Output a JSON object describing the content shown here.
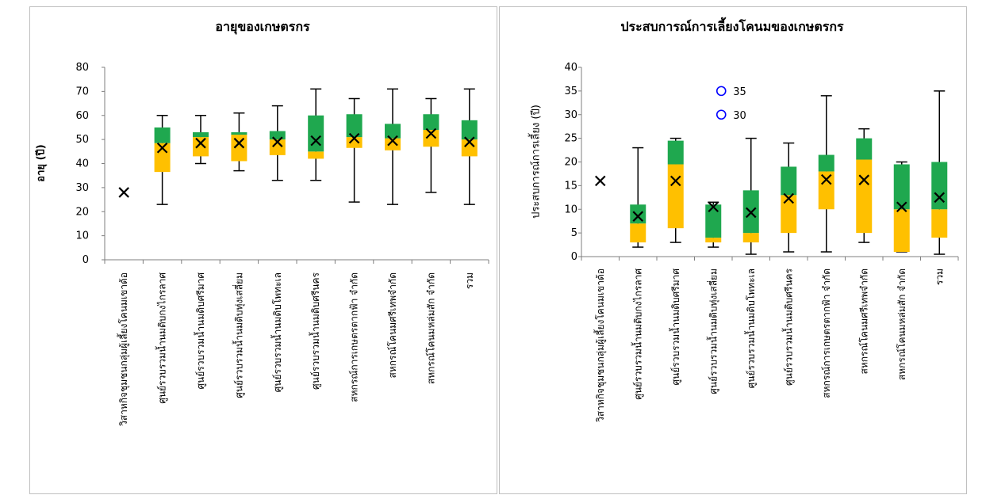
{
  "colors": {
    "upper_box": "#1fa84f",
    "lower_box": "#ffc000",
    "whisker": "#000000",
    "mean_marker": "#000000",
    "outlier": "#0000ff",
    "axis": "#7f7f7f",
    "border": "#bfbfbf"
  },
  "chart_data": [
    {
      "type": "box",
      "title": "อายุของเกษตรกร",
      "ylabel": "อายุ (ปี)",
      "ylim": [
        0,
        80
      ],
      "yticks": [
        0,
        10,
        20,
        30,
        40,
        50,
        60,
        70,
        80
      ],
      "categories": [
        "วิสาหกิจชุมชนกลุ่มผู้เลี้ยงโคนมเขาด้อ",
        "ศูนย์รวบรวมน้ำนมดิบกงไกรลาศ",
        "ศูนย์รวบรวมน้ำนมดิบศรีมาศ",
        "ศูนย์รวบรวมน้ำนมดิบทุ่งเสลี่ยม",
        "ศูนย์รวบรวมน้ำนมดิบโพทะเล",
        "ศูนย์รวบรวมน้ำนมดิบศรีนคร",
        "สหกรณ์การเกษตรตากฟ้า จำกัด",
        "สหกรณ์โคนมศรีเทพจำกัด",
        "สหกรณ์โคนมหล่มสัก จำกัด",
        "รวม"
      ],
      "boxes": [
        {
          "min": 28,
          "q1": 28,
          "median": 28,
          "q3": 28,
          "max": 28,
          "mean": 28
        },
        {
          "min": 23,
          "q1": 36.5,
          "median": 48.5,
          "q3": 55,
          "max": 60,
          "mean": 46.5
        },
        {
          "min": 40,
          "q1": 43,
          "median": 51,
          "q3": 53,
          "max": 60,
          "mean": 48.5
        },
        {
          "min": 37,
          "q1": 41,
          "median": 52,
          "q3": 53,
          "max": 61,
          "mean": 48.5
        },
        {
          "min": 33,
          "q1": 43.5,
          "median": 50,
          "q3": 53.5,
          "max": 64,
          "mean": 49
        },
        {
          "min": 33,
          "q1": 42,
          "median": 45,
          "q3": 60,
          "max": 71,
          "mean": 49.5
        },
        {
          "min": 24,
          "q1": 46.5,
          "median": 51,
          "q3": 60.5,
          "max": 67,
          "mean": 50.5
        },
        {
          "min": 23,
          "q1": 45.5,
          "median": 50.5,
          "q3": 56.5,
          "max": 71,
          "mean": 49.5
        },
        {
          "min": 28,
          "q1": 47,
          "median": 54,
          "q3": 60.5,
          "max": 67,
          "mean": 52.5
        },
        {
          "min": 23,
          "q1": 43,
          "median": 50,
          "q3": 58,
          "max": 71,
          "mean": 49
        }
      ],
      "outliers": []
    },
    {
      "type": "box",
      "title": "ประสบการณ์การเลี้ยงโคนมของเกษตรกร",
      "ylabel": "ประสบการณ์การเลี้ยง (ปี)",
      "ylim": [
        0,
        40
      ],
      "yticks": [
        0,
        5,
        10,
        15,
        20,
        25,
        30,
        35,
        40
      ],
      "categories": [
        "วิสาหกิจชุมชนกลุ่มผู้เลี้ยงโคนมเขาด้อ",
        "ศูนย์รวบรวมน้ำนมดิบกงไกรลาศ",
        "ศูนย์รวบรวมน้ำนมดิบศรีมาศ",
        "ศูนย์รวบรวมน้ำนมดิบทุ่งเสลี่ยม",
        "ศูนย์รวบรวมน้ำนมดิบโพทะเล",
        "ศูนย์รวบรวมน้ำนมดิบศรีนคร",
        "สหกรณ์การเกษตรตากฟ้า จำกัด",
        "สหกรณ์โคนมศรีเทพจำกัด",
        "สหกรณ์โคนมหล่มสัก จำกัด",
        "รวม"
      ],
      "boxes": [
        {
          "min": 16,
          "q1": 16,
          "median": 16,
          "q3": 16,
          "max": 16,
          "mean": 16
        },
        {
          "min": 2,
          "q1": 3,
          "median": 7,
          "q3": 11,
          "max": 23,
          "mean": 8.5
        },
        {
          "min": 3,
          "q1": 6,
          "median": 19.5,
          "q3": 24.5,
          "max": 25,
          "mean": 16
        },
        {
          "min": 2,
          "q1": 3,
          "median": 4,
          "q3": 11,
          "max": 11.5,
          "mean": 10.5
        },
        {
          "min": 0.5,
          "q1": 3,
          "median": 5,
          "q3": 14,
          "max": 25,
          "mean": 9.3
        },
        {
          "min": 1,
          "q1": 5,
          "median": 13,
          "q3": 19,
          "max": 24,
          "mean": 12.3
        },
        {
          "min": 1,
          "q1": 10,
          "median": 18,
          "q3": 21.5,
          "max": 34,
          "mean": 16.3
        },
        {
          "min": 3,
          "q1": 5,
          "median": 20.5,
          "q3": 25,
          "max": 27,
          "mean": 16.2
        },
        {
          "min": 1,
          "q1": 1,
          "median": 10,
          "q3": 19.5,
          "max": 20,
          "mean": 10.5
        },
        {
          "min": 0.5,
          "q1": 4,
          "median": 10,
          "q3": 20,
          "max": 35,
          "mean": 12.5
        }
      ],
      "outliers": [
        {
          "category": "ศูนย์รวบรวมน้ำนมดิบทุ่งเสลี่ยม",
          "value": 35,
          "label": "35"
        },
        {
          "category": "ศูนย์รวบรวมน้ำนมดิบทุ่งเสลี่ยม",
          "value": 30,
          "label": "30"
        }
      ]
    }
  ]
}
